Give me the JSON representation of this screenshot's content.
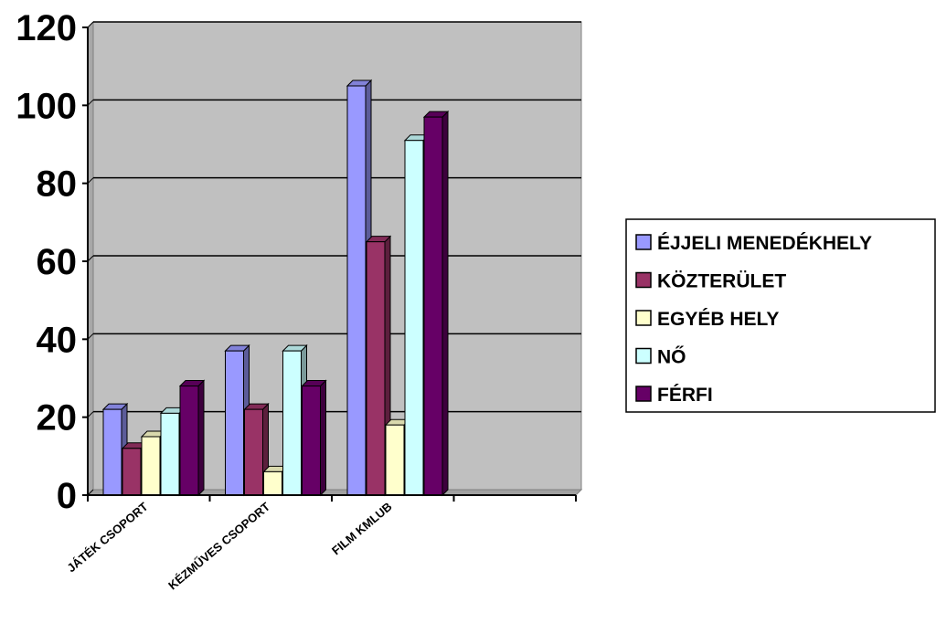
{
  "chart_data": {
    "type": "bar",
    "categories": [
      "JÁTÉK CSOPORT",
      "KÉZMŰVES CSOPORT",
      "FILM KMLUB",
      ""
    ],
    "series": [
      {
        "name": "ÉJJELI MENEDÉKHELY",
        "values": [
          22,
          37,
          105,
          null
        ],
        "color": "#9999ff"
      },
      {
        "name": "KÖZTERÜLET",
        "values": [
          12,
          22,
          65,
          null
        ],
        "color": "#993366"
      },
      {
        "name": "EGYÉB HELY",
        "values": [
          15,
          6,
          18,
          null
        ],
        "color": "#ffffcc"
      },
      {
        "name": "NŐ",
        "values": [
          21,
          37,
          91,
          null
        ],
        "color": "#ccffff"
      },
      {
        "name": "FÉRFI",
        "values": [
          28,
          28,
          97,
          null
        ],
        "color": "#660066"
      }
    ],
    "yticks": [
      "0",
      "20",
      "40",
      "60",
      "80",
      "100",
      "120"
    ],
    "ylim": [
      0,
      120
    ],
    "grid": true,
    "legend": "right",
    "plot_background": "#c0c0c0"
  }
}
